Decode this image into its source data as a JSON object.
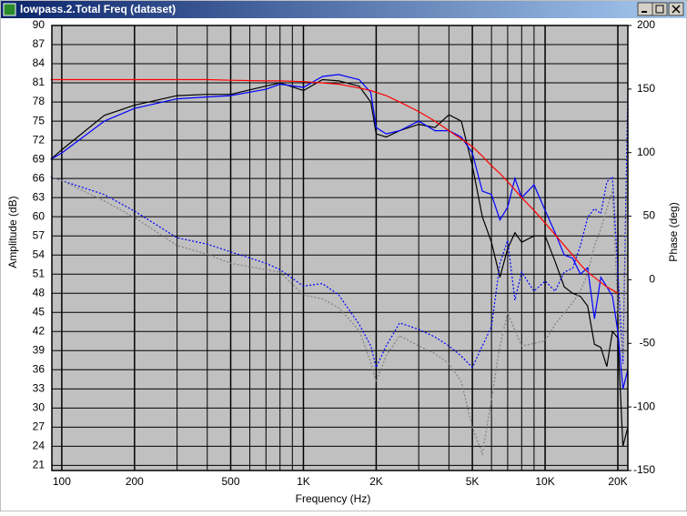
{
  "chart_data": {
    "type": "line",
    "title": "lowpass.2.Total Freq (dataset)",
    "xlabel": "Frequency (Hz)",
    "ylabel": "Amplitude (dB)",
    "y2label": "Phase (deg)",
    "xscale": "log",
    "xlim": [
      91,
      22000
    ],
    "xticks": [
      100,
      200,
      500,
      {
        "value": 1000,
        "label": "1K"
      },
      {
        "value": 2000,
        "label": "2K"
      },
      {
        "value": 5000,
        "label": "5K"
      },
      {
        "value": 10000,
        "label": "10K"
      },
      {
        "value": 20000,
        "label": "20K"
      }
    ],
    "xgrid": [
      300,
      400,
      600,
      700,
      800,
      900,
      3000,
      4000,
      6000,
      7000,
      8000,
      9000
    ],
    "ylim": [
      20.2,
      90
    ],
    "yticks": [
      21,
      24,
      27,
      30,
      33,
      36,
      39,
      42,
      45,
      48,
      51,
      54,
      57,
      60,
      63,
      66,
      69,
      72,
      75,
      78,
      81,
      84,
      87,
      90
    ],
    "y2lim": [
      -150,
      200
    ],
    "y2ticks": [
      -150,
      -100,
      -50,
      0,
      50,
      100,
      150,
      200
    ],
    "grid": true,
    "background": "#c0c0c0",
    "x": [
      90,
      100,
      150,
      200,
      300,
      400,
      500,
      700,
      800,
      1000,
      1200,
      1400,
      1700,
      1900,
      2000,
      2200,
      2500,
      3000,
      3500,
      4000,
      4500,
      5000,
      5500,
      6000,
      6500,
      7000,
      7500,
      8000,
      9000,
      10000,
      11000,
      12000,
      13000,
      14000,
      15000,
      16000,
      17000,
      18000,
      19000,
      20000,
      21000,
      22000
    ],
    "series": [
      {
        "color": "#000000",
        "style": "solid",
        "values": [
          69,
          70.5,
          75.9,
          77.5,
          79,
          79.2,
          79.2,
          80.5,
          81,
          79.8,
          81.5,
          81.3,
          80.5,
          78,
          73,
          72.5,
          73.5,
          74.5,
          74,
          76,
          75,
          68,
          60,
          56,
          50.5,
          55,
          57.5,
          56,
          57,
          57,
          53,
          49,
          48,
          47.5,
          46,
          40,
          39.5,
          36.5,
          42,
          41,
          24,
          27
        ]
      },
      {
        "color": "#0000ff",
        "style": "solid",
        "values": [
          69,
          70,
          75,
          77,
          78.5,
          78.8,
          79,
          80,
          80.8,
          80.3,
          82,
          82.3,
          81.5,
          79.5,
          74,
          73,
          73.5,
          75,
          73.5,
          73.5,
          72.5,
          70,
          64,
          63.5,
          59.5,
          61.5,
          66,
          63,
          65,
          61,
          57.5,
          54,
          53.5,
          51,
          52,
          44,
          50.5,
          49,
          47.5,
          42,
          33,
          36
        ]
      },
      {
        "color": "#ff0000",
        "style": "solid",
        "values": [
          81.5,
          81.5,
          81.5,
          81.5,
          81.5,
          81.5,
          81.4,
          81.3,
          81.3,
          81.2,
          81,
          80.8,
          80.2,
          79.8,
          79.5,
          79,
          78,
          76.5,
          75,
          73.5,
          72.2,
          71,
          69.5,
          68,
          66.8,
          65.5,
          64.2,
          63,
          61,
          59,
          57.2,
          55.5,
          54,
          52.5,
          51.3,
          50.5,
          49.7,
          49,
          48.5,
          48,
          null,
          null
        ]
      },
      {
        "color": "#0000ff",
        "style": "dotted",
        "axis": "y2",
        "values": [
          81,
          78,
          67,
          54,
          33,
          28,
          22,
          13,
          8,
          -5,
          -3,
          -12,
          -35,
          -52,
          -69,
          -52,
          -34,
          -39,
          -45,
          -52,
          -60,
          -69,
          -52,
          -37,
          13,
          31,
          -16,
          6,
          -9,
          -1,
          -9,
          6,
          9,
          27,
          49,
          56,
          52,
          77,
          81,
          6,
          -66,
          149
        ]
      },
      {
        "color": "#808080",
        "style": "dotted",
        "axis": "y2",
        "values": [
          81,
          78,
          62,
          49,
          27,
          20,
          13,
          8,
          6,
          -12,
          -15,
          -22,
          -40,
          -65,
          -80,
          -60,
          -44,
          -52,
          -58,
          -66,
          -80,
          -116,
          -137,
          -94,
          -52,
          -26,
          -40,
          -52,
          -50,
          -48,
          -35,
          -26,
          -18,
          -9,
          5,
          27,
          40,
          56,
          70,
          -23,
          -60,
          113
        ]
      }
    ]
  }
}
